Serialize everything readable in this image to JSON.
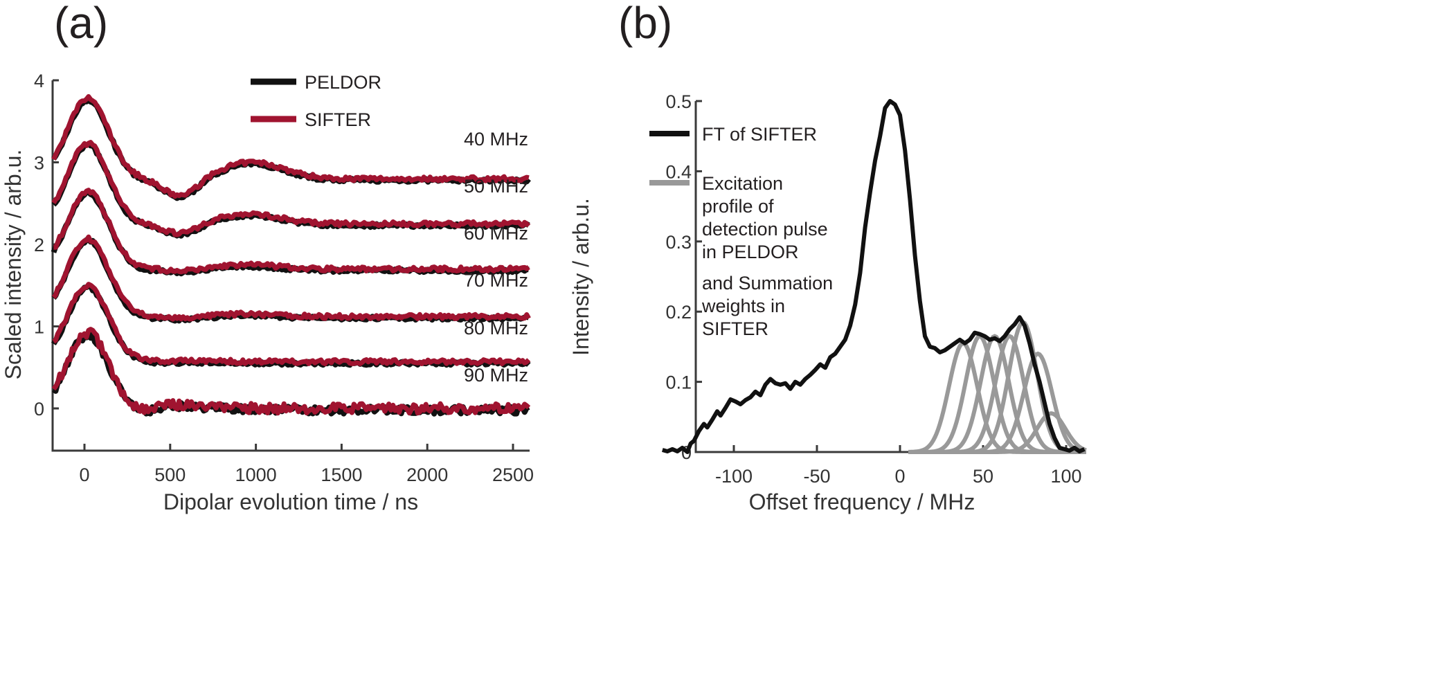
{
  "chart_data": [
    {
      "panel": "(a)",
      "type": "line",
      "title": "",
      "xlabel": "Dipolar evolution time / ns",
      "ylabel": "Scaled intensity / arb.u.",
      "xlim": [
        -185,
        2600
      ],
      "ylim": [
        -0.5,
        4
      ],
      "xticks": [
        0,
        500,
        1000,
        1500,
        2000,
        2500
      ],
      "xtick_labels": [
        "0",
        "500",
        "1000",
        "1500",
        "2000",
        "2500"
      ],
      "yticks": [
        0,
        1,
        2,
        3,
        4
      ],
      "ytick_labels": [
        "0",
        "1",
        "2",
        "3",
        "4"
      ],
      "grid": false,
      "legend": {
        "placement": "top-center",
        "entries": [
          {
            "name": "PELDOR",
            "color": "#111111"
          },
          {
            "name": "SIFTER",
            "color": "#a01430"
          }
        ]
      },
      "traces": [
        {
          "label": "40 MHz",
          "offset": 2.8,
          "peak": 0.98,
          "dip": -0.22,
          "second_peak": 0.2,
          "dip_t": 560,
          "sp_t": 980,
          "decay": "oscillating"
        },
        {
          "label": "50 MHz",
          "offset": 2.25,
          "peak": 0.98,
          "dip": -0.12,
          "second_peak": 0.12,
          "dip_t": 560,
          "sp_t": 960,
          "decay": "oscillating"
        },
        {
          "label": "60 MHz",
          "offset": 1.7,
          "peak": 0.95,
          "dip": -0.03,
          "second_peak": 0.05,
          "dip_t": 580,
          "sp_t": 950,
          "decay": "damped"
        },
        {
          "label": "70 MHz",
          "offset": 1.12,
          "peak": 0.95,
          "dip": -0.02,
          "second_peak": 0.03,
          "dip_t": 600,
          "sp_t": 950,
          "decay": "damped"
        },
        {
          "label": "80 MHz",
          "offset": 0.57,
          "peak": 0.93,
          "dip": 0.0,
          "second_peak": 0.01,
          "dip_t": 350,
          "sp_t": 600,
          "decay": "fast"
        },
        {
          "label": "90 MHz",
          "offset": 0.0,
          "peak": 0.92,
          "dip": -0.06,
          "second_peak": 0.05,
          "dip_t": 320,
          "sp_t": 550,
          "decay": "fast"
        }
      ],
      "trace_start": {
        "t": -180,
        "values_above_offset": [
          0.52,
          0.54,
          0.55,
          0.55,
          0.5,
          0.25
        ]
      }
    },
    {
      "panel": "(b)",
      "type": "line",
      "title": "",
      "xlabel": "Offset frequency / MHz",
      "ylabel": "Intensity / arb.u.",
      "xlim": [
        -143,
        112
      ],
      "ylim": [
        0,
        0.5
      ],
      "xticks": [
        -100,
        -50,
        0,
        50,
        100
      ],
      "xtick_labels": [
        "-100",
        "-50",
        "0",
        "50",
        "100"
      ],
      "yticks": [
        0,
        0.1,
        0.2,
        0.3,
        0.4,
        0.5
      ],
      "ytick_labels": [
        "0",
        "0.1",
        "0.2",
        "0.3",
        "0.4",
        "0.5"
      ],
      "grid": false,
      "legend": {
        "placement": "top-left",
        "entries": [
          {
            "name": "FT of SIFTER",
            "color": "#111111"
          },
          {
            "name": "Excitation profile of detection pulse in PELDOR",
            "color": "#999999",
            "lines": [
              "Excitation",
              "profile of",
              "detection pulse",
              "in PELDOR"
            ]
          },
          {
            "name": "and Summation weights in SIFTER",
            "color": null,
            "lines": [
              "and Summation",
              "weights in",
              "SIFTER"
            ]
          }
        ]
      },
      "series": [
        {
          "name": "FT of SIFTER",
          "color": "#111111",
          "x": [
            -143,
            -140,
            -137,
            -134,
            -131,
            -128,
            -126,
            -124,
            -121,
            -118,
            -116,
            -113,
            -110,
            -108,
            -105,
            -102,
            -99,
            -96,
            -93,
            -90,
            -87,
            -84,
            -81,
            -78,
            -75,
            -72,
            -69,
            -66,
            -63,
            -60,
            -57,
            -54,
            -51,
            -48,
            -45,
            -42,
            -39,
            -36,
            -33,
            -30,
            -27,
            -24,
            -21,
            -18,
            -15,
            -12,
            -9,
            -6,
            -3,
            0,
            3,
            6,
            9,
            12,
            15,
            18,
            21,
            24,
            27,
            30,
            33,
            36,
            39,
            42,
            45,
            48,
            51,
            54,
            57,
            60,
            63,
            66,
            69,
            72,
            75,
            78,
            81,
            84,
            87,
            90,
            93,
            96,
            99,
            102,
            105,
            108,
            111
          ],
          "values": [
            0.003,
            0.001,
            0.004,
            0.001,
            0.006,
            0.0,
            0.012,
            0.016,
            0.03,
            0.04,
            0.035,
            0.046,
            0.058,
            0.052,
            0.063,
            0.075,
            0.072,
            0.068,
            0.074,
            0.078,
            0.086,
            0.081,
            0.096,
            0.104,
            0.098,
            0.096,
            0.098,
            0.09,
            0.1,
            0.096,
            0.104,
            0.11,
            0.117,
            0.125,
            0.12,
            0.135,
            0.14,
            0.15,
            0.16,
            0.18,
            0.21,
            0.255,
            0.32,
            0.37,
            0.415,
            0.45,
            0.49,
            0.5,
            0.495,
            0.48,
            0.43,
            0.36,
            0.28,
            0.215,
            0.165,
            0.15,
            0.148,
            0.142,
            0.145,
            0.15,
            0.155,
            0.16,
            0.155,
            0.16,
            0.17,
            0.168,
            0.165,
            0.16,
            0.162,
            0.158,
            0.165,
            0.175,
            0.182,
            0.192,
            0.18,
            0.155,
            0.125,
            0.1,
            0.07,
            0.04,
            0.02,
            0.006,
            0.004,
            0.002,
            0.006,
            0.001,
            0.004
          ]
        },
        {
          "name": "Excitation profiles (Gaussians)",
          "color": "#999999",
          "gaussians": [
            {
              "center": 38,
              "amplitude": 0.155,
              "sigma": 8.5
            },
            {
              "center": 48,
              "amplitude": 0.165,
              "sigma": 8.5
            },
            {
              "center": 57,
              "amplitude": 0.165,
              "sigma": 8.5
            },
            {
              "center": 66,
              "amplitude": 0.165,
              "sigma": 8.5
            },
            {
              "center": 74,
              "amplitude": 0.185,
              "sigma": 8.5
            },
            {
              "center": 83,
              "amplitude": 0.14,
              "sigma": 8.5
            },
            {
              "center": 91,
              "amplitude": 0.055,
              "sigma": 8.5
            }
          ],
          "x_start": 5
        }
      ]
    }
  ],
  "panel_a": {
    "label": "(a)",
    "legend_peldor": "PELDOR",
    "legend_sifter": "SIFTER",
    "trace_labels": [
      "40 MHz",
      "50 MHz",
      "60 MHz",
      "70 MHz",
      "80 MHz",
      "90 MHz"
    ],
    "xlabel": "Dipolar evolution time / ns",
    "ylabel": "Scaled intensity / arb.u.",
    "xtick_labels": [
      "0",
      "500",
      "1000",
      "1500",
      "2000",
      "2500"
    ],
    "ytick_labels": [
      "0",
      "1",
      "2",
      "3",
      "4"
    ]
  },
  "panel_b": {
    "label": "(b)",
    "legend_ft": "FT of SIFTER",
    "legend_exc_lines": [
      "Excitation",
      "profile of",
      "detection pulse",
      "in PELDOR"
    ],
    "legend_sum_lines": [
      "and Summation",
      "weights in",
      "SIFTER"
    ],
    "xlabel": "Offset frequency / MHz",
    "ylabel": "Intensity / arb.u.",
    "xtick_labels": [
      "-100",
      "-50",
      "0",
      "50",
      "100"
    ],
    "ytick_labels": [
      "0",
      "0.1",
      "0.2",
      "0.3",
      "0.4",
      "0.5"
    ]
  },
  "colors": {
    "peldor": "#111111",
    "sifter": "#a01430",
    "ft": "#111111",
    "gaussian": "#999999",
    "axis": "#3a3a3a"
  }
}
